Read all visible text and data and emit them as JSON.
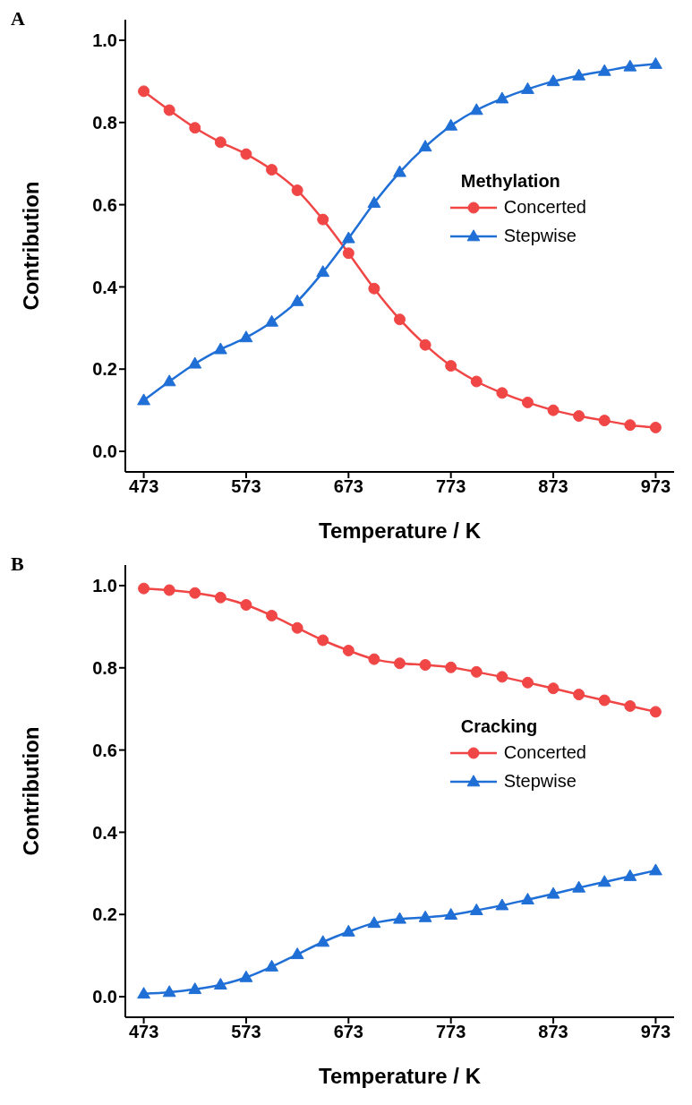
{
  "chart_data": [
    {
      "type": "line",
      "title": "A",
      "xlabel": "Temperature / K",
      "ylabel": "Contribution",
      "legend_title": "Methylation",
      "legend": "right",
      "grid": false,
      "line_style": "solid",
      "x": [
        473,
        498,
        523,
        548,
        573,
        598,
        623,
        648,
        673,
        698,
        723,
        748,
        773,
        798,
        823,
        848,
        873,
        898,
        923,
        948,
        973
      ],
      "xlim": [
        455,
        991
      ],
      "xticks": [
        473,
        573,
        673,
        773,
        873,
        973
      ],
      "ylim": [
        -0.05,
        1.05
      ],
      "yticks": [
        {
          "value": 0,
          "label": "0.0"
        },
        {
          "value": 0.2,
          "label": "0.2"
        },
        {
          "value": 0.4,
          "label": "0.4"
        },
        {
          "value": 0.6,
          "label": "0.6"
        },
        {
          "value": 0.8,
          "label": "0.8"
        },
        {
          "value": 1,
          "label": "1.0"
        }
      ],
      "series": [
        {
          "name": "Concerted",
          "color": "#f04646",
          "marker": "circle",
          "values": [
            0.876,
            0.83,
            0.787,
            0.752,
            0.723,
            0.685,
            0.635,
            0.564,
            0.482,
            0.396,
            0.321,
            0.259,
            0.208,
            0.17,
            0.142,
            0.119,
            0.1,
            0.086,
            0.075,
            0.064,
            0.058
          ]
        },
        {
          "name": "Stepwise",
          "color": "#1f6fd6",
          "marker": "triangle",
          "values": [
            0.124,
            0.17,
            0.213,
            0.248,
            0.277,
            0.315,
            0.365,
            0.436,
            0.518,
            0.604,
            0.679,
            0.741,
            0.792,
            0.83,
            0.858,
            0.881,
            0.9,
            0.914,
            0.925,
            0.936,
            0.942
          ]
        }
      ]
    },
    {
      "type": "line",
      "title": "B",
      "xlabel": "Temperature / K",
      "ylabel": "Contribution",
      "legend_title": "Cracking",
      "legend": "right",
      "grid": false,
      "line_style": "solid",
      "x": [
        473,
        498,
        523,
        548,
        573,
        598,
        623,
        648,
        673,
        698,
        723,
        748,
        773,
        798,
        823,
        848,
        873,
        898,
        923,
        948,
        973
      ],
      "xlim": [
        455,
        991
      ],
      "xticks": [
        473,
        573,
        673,
        773,
        873,
        973
      ],
      "ylim": [
        -0.05,
        1.05
      ],
      "yticks": [
        {
          "value": 0,
          "label": "0.0"
        },
        {
          "value": 0.2,
          "label": "0.2"
        },
        {
          "value": 0.4,
          "label": "0.4"
        },
        {
          "value": 0.6,
          "label": "0.6"
        },
        {
          "value": 0.8,
          "label": "0.8"
        },
        {
          "value": 1,
          "label": "1.0"
        }
      ],
      "series": [
        {
          "name": "Concerted",
          "color": "#f04646",
          "marker": "circle",
          "values": [
            0.993,
            0.989,
            0.982,
            0.971,
            0.953,
            0.927,
            0.897,
            0.867,
            0.842,
            0.821,
            0.811,
            0.807,
            0.801,
            0.79,
            0.778,
            0.764,
            0.75,
            0.735,
            0.721,
            0.707,
            0.693
          ]
        },
        {
          "name": "Stepwise",
          "color": "#1f6fd6",
          "marker": "triangle",
          "values": [
            0.007,
            0.011,
            0.018,
            0.029,
            0.047,
            0.073,
            0.103,
            0.133,
            0.158,
            0.179,
            0.189,
            0.193,
            0.199,
            0.21,
            0.222,
            0.236,
            0.25,
            0.265,
            0.279,
            0.293,
            0.307
          ]
        }
      ]
    }
  ]
}
